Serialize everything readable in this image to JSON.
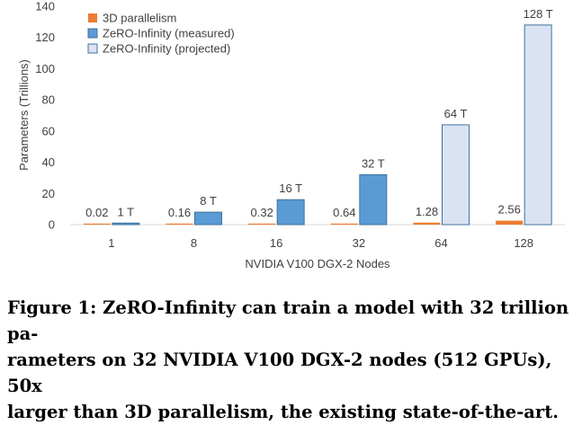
{
  "chart_data": {
    "type": "bar",
    "xlabel": "NVIDIA V100 DGX-2 Nodes",
    "ylabel": "Parameters (Trillions)",
    "ylim": [
      0,
      140
    ],
    "yticks": [
      "0",
      "20",
      "40",
      "60",
      "80",
      "100",
      "120",
      "140"
    ],
    "categories": [
      "1",
      "8",
      "16",
      "32",
      "64",
      "128"
    ],
    "legend_position": "top-left",
    "grid": false,
    "series": [
      {
        "name": "3D parallelism",
        "color": "#ed7d31",
        "values": [
          0.02,
          0.16,
          0.32,
          0.64,
          1.28,
          2.56
        ],
        "labels": [
          "0.02",
          "0.16",
          "0.32",
          "0.64",
          "1.28",
          "2.56"
        ]
      },
      {
        "name": "ZeRO-Infinity (measured)",
        "color": "#5b9bd5",
        "values": [
          1,
          8,
          16,
          32,
          null,
          null
        ],
        "labels": [
          "1 T",
          "8 T",
          "16 T",
          "32 T",
          "",
          ""
        ]
      },
      {
        "name": "ZeRO-Infinity (projected)",
        "color": "#dae3f3",
        "values": [
          null,
          null,
          null,
          null,
          64,
          128
        ],
        "labels": [
          "",
          "",
          "",
          "",
          "64 T",
          "128 T"
        ]
      }
    ]
  },
  "caption": {
    "lines": [
      "Figure 1: ZeRO-Infinity can train a model with 32 trillion pa-",
      "rameters on 32 NVIDIA V100 DGX-2 nodes (512 GPUs), 50x",
      "larger than 3D parallelism, the existing state-of-the-art."
    ]
  }
}
